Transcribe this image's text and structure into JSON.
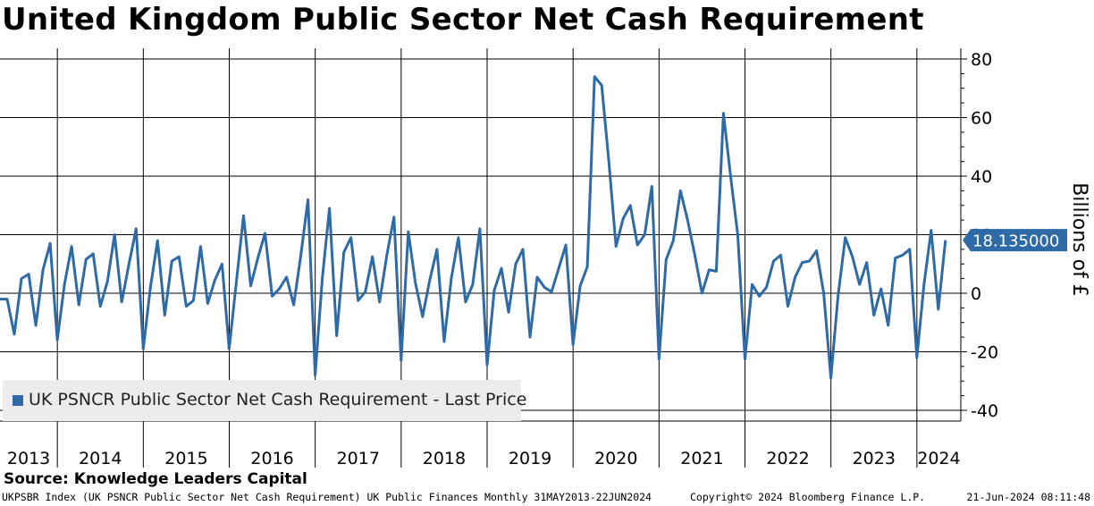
{
  "chart_data": {
    "type": "line",
    "title": "United Kingdom Public Sector Net Cash Requirement",
    "ylabel": "Billions of £",
    "xlabel": "",
    "ylim": [
      -44,
      84
    ],
    "yticks": [
      80,
      60,
      40,
      20,
      0,
      -20,
      -40
    ],
    "ytick_labels": [
      "80",
      "60",
      "40",
      "20",
      "0",
      "-20",
      "-40"
    ],
    "year_labels": [
      "2013",
      "2014",
      "2015",
      "2016",
      "2017",
      "2018",
      "2019",
      "2020",
      "2021",
      "2022",
      "2023",
      "2024"
    ],
    "x_start": "2013-05",
    "x_end": "2024-06",
    "grid": true,
    "legend_position": "bottom-left",
    "series": [
      {
        "name": "UK PSNCR Public Sector Net Cash Requirement - Last Price",
        "color": "#2e6aa6",
        "last_value": "18.135000",
        "values": [
          -2,
          -2,
          -14,
          5,
          6.5,
          -11,
          8,
          17,
          -16,
          3,
          16,
          -4,
          11.5,
          13.5,
          -4.5,
          4,
          20,
          -3,
          10,
          22,
          -19,
          2,
          18,
          -7.5,
          11,
          12.5,
          -4.5,
          -2.5,
          16,
          -3.5,
          4.5,
          10,
          -19,
          4,
          26.5,
          2.5,
          12,
          20.5,
          -1,
          1.5,
          5.5,
          -4,
          13,
          32,
          -28,
          5,
          29,
          -14.5,
          14,
          19,
          -2.5,
          0.5,
          12.5,
          -3,
          13,
          26,
          -23,
          21,
          3.5,
          -8,
          4.5,
          15,
          -16.5,
          5,
          19,
          -3,
          3,
          22,
          -24.5,
          1,
          8.5,
          -6.5,
          10,
          15,
          -15,
          5.5,
          2,
          0.5,
          8.5,
          16.5,
          -17.5,
          2.5,
          9,
          74,
          71,
          45,
          16,
          25.5,
          30,
          16.5,
          20,
          36.5,
          -22.5,
          11.5,
          18,
          35,
          25,
          13,
          0,
          8,
          7.5,
          61.5,
          40,
          20,
          -22.5,
          3,
          -1,
          2,
          11,
          13,
          -4.5,
          5.5,
          10.5,
          11,
          14.5,
          0,
          -29,
          -1,
          19,
          12.5,
          3,
          10.5,
          -7.5,
          1.5,
          -11,
          12,
          13,
          15,
          -22,
          3,
          21.5,
          -5.5,
          18.135
        ]
      }
    ]
  },
  "footer": {
    "source": "Source: Knowledge Leaders Capital",
    "description": "UKPSBR Index (UK PSNCR Public Sector Net Cash Requirement) UK Public Finances  Monthly 31MAY2013-22JUN2024",
    "copyright": "Copyright© 2024 Bloomberg Finance L.P.",
    "timestamp": "21-Jun-2024 08:11:48"
  }
}
